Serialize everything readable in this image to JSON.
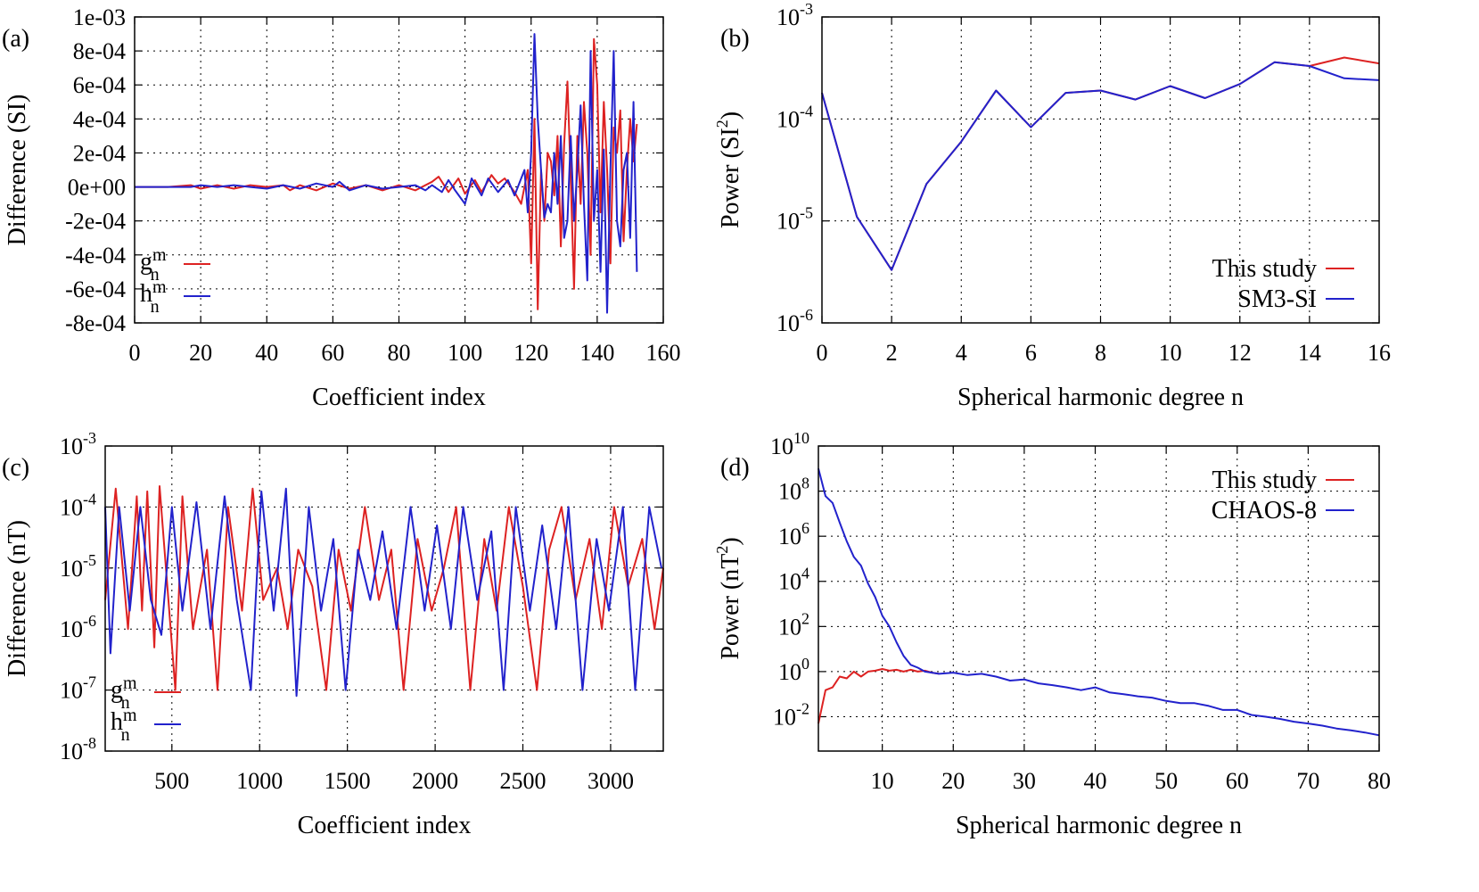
{
  "chart_data": [
    {
      "panel": "(a)",
      "type": "line",
      "xlabel": "Coefficient index",
      "ylabel": "Difference (SI)",
      "xlim": [
        0,
        160
      ],
      "ylim": [
        -0.0008,
        0.001
      ],
      "xticks": [
        "0",
        "20",
        "40",
        "60",
        "80",
        "100",
        "120",
        "140",
        "160"
      ],
      "yticks": [
        "-8e-04",
        "-6e-04",
        "-4e-04",
        "-2e-04",
        "0e+00",
        "2e-04",
        "4e-04",
        "6e-04",
        "8e-04",
        "1e-03"
      ],
      "grid": true,
      "legend": "bottom-left",
      "series": [
        {
          "name": "g",
          "sub": "n",
          "sup": "m",
          "color": "#dd2222",
          "x": [
            0,
            10,
            17,
            20,
            25,
            30,
            35,
            40,
            45,
            47,
            50,
            55,
            60,
            65,
            70,
            75,
            80,
            85,
            90,
            92,
            95,
            98,
            100,
            103,
            105,
            108,
            110,
            112,
            115,
            117,
            119,
            120,
            121,
            122,
            123,
            124,
            125,
            126,
            127,
            128,
            129,
            130,
            131,
            132,
            133,
            134,
            135,
            136,
            137,
            138,
            139,
            140,
            141,
            142,
            143,
            144,
            145,
            146,
            147,
            148,
            149,
            150,
            151,
            152
          ],
          "y": [
            0,
            0,
            1e-05,
            -1e-05,
            1e-05,
            -1e-05,
            1e-05,
            0,
            1e-05,
            -2e-05,
            1e-05,
            -2e-05,
            2e-05,
            -1e-05,
            1e-05,
            -2e-05,
            1e-05,
            -2e-05,
            3e-05,
            6e-05,
            -3e-05,
            5e-05,
            -4e-05,
            4e-05,
            -3e-05,
            7e-05,
            2e-05,
            5e-05,
            -3e-05,
            -0.0001,
            0.0001,
            -0.00045,
            0.0004,
            -0.00072,
            0.0001,
            -0.0002,
            0.0002,
            0.00015,
            -5e-05,
            0.0003,
            -0.00035,
            0.00025,
            0.00062,
            5e-05,
            -0.0006,
            0.0003,
            -0.0001,
            0.0005,
            0.0002,
            -0.0004,
            0.00087,
            0.0006,
            -0.00015,
            0.0005,
            0.0001,
            -0.00045,
            0.00035,
            0.0002,
            0.00045,
            -0.00032,
            0.0001,
            0.0004,
            0.00015,
            0.00037
          ]
        },
        {
          "name": "h",
          "sub": "n",
          "sup": "m",
          "color": "#2222cc",
          "x": [
            0,
            10,
            17,
            20,
            25,
            30,
            35,
            40,
            45,
            50,
            55,
            60,
            62,
            65,
            70,
            75,
            80,
            85,
            88,
            90,
            93,
            95,
            97,
            100,
            102,
            105,
            107,
            110,
            113,
            115,
            118,
            119,
            120,
            121,
            122,
            123,
            124,
            125,
            126,
            127,
            128,
            129,
            130,
            131,
            132,
            133,
            134,
            135,
            136,
            137,
            138,
            139,
            140,
            141,
            142,
            143,
            144,
            145,
            146,
            147,
            148,
            149,
            150,
            151,
            152
          ],
          "y": [
            0,
            0,
            0,
            1e-05,
            0,
            1e-05,
            0,
            -1e-05,
            1e-05,
            -1e-05,
            2e-05,
            0,
            3e-05,
            -2e-05,
            1e-05,
            -1e-05,
            0,
            1e-05,
            -2e-05,
            1e-05,
            -3e-05,
            4e-05,
            -2e-05,
            -0.0001,
            5e-05,
            -5e-05,
            5e-05,
            -3e-05,
            4e-05,
            -5e-05,
            0.0001,
            -0.00015,
            0.0002,
            0.0009,
            0.0004,
            0.0001,
            -0.00018,
            -0.0001,
            -0.00015,
            0.0002,
            -0.0001,
            0.0003,
            -0.0003,
            -0.0002,
            0.0003,
            -0.0002,
            0.0001,
            0.00048,
            -0.0001,
            -0.00055,
            0.0008,
            -0.0002,
            0.0001,
            -0.0005,
            0.00022,
            -0.00074,
            0.0001,
            0.0008,
            -0.0002,
            -0.00035,
            0.0001,
            0.0002,
            -0.0003,
            0.0005,
            -0.0005
          ]
        }
      ]
    },
    {
      "panel": "(b)",
      "type": "line",
      "xlabel": "Spherical harmonic degree n",
      "ylabel": "Power (SI",
      "ylabel_sup": "2",
      "ylabel_end": ")",
      "yscale": "log",
      "xlim": [
        0,
        16
      ],
      "ylim": [
        1e-06,
        0.001
      ],
      "xticks": [
        "0",
        "2",
        "4",
        "6",
        "8",
        "10",
        "12",
        "14",
        "16"
      ],
      "yticks": [
        {
          "base": "10",
          "exp": "-6"
        },
        {
          "base": "10",
          "exp": "-5"
        },
        {
          "base": "10",
          "exp": "-4"
        },
        {
          "base": "10",
          "exp": "-3"
        }
      ],
      "grid": true,
      "legend": "bottom-right",
      "series": [
        {
          "name": "This study",
          "color": "#dd2222",
          "x": [
            0,
            1,
            2,
            3,
            4,
            5,
            6,
            7,
            8,
            9,
            10,
            11,
            12,
            13,
            14,
            15,
            16
          ],
          "y": [
            0.00018,
            1.1e-05,
            3.3e-06,
            2.3e-05,
            6e-05,
            0.00019,
            8.3e-05,
            0.00018,
            0.00019,
            0.000155,
            0.00021,
            0.00016,
            0.00022,
            0.00036,
            0.00033,
            0.0004,
            0.00035
          ]
        },
        {
          "name": "SM3-SI",
          "color": "#2222cc",
          "x": [
            0,
            1,
            2,
            3,
            4,
            5,
            6,
            7,
            8,
            9,
            10,
            11,
            12,
            13,
            14,
            15,
            16
          ],
          "y": [
            0.00018,
            1.1e-05,
            3.3e-06,
            2.3e-05,
            6e-05,
            0.00019,
            8.3e-05,
            0.00018,
            0.00019,
            0.000155,
            0.00021,
            0.00016,
            0.00022,
            0.00036,
            0.00033,
            0.00025,
            0.00024
          ]
        }
      ]
    },
    {
      "panel": "(c)",
      "type": "line",
      "xlabel": "Coefficient index",
      "ylabel": "Difference (nT)",
      "yscale": "log",
      "xlim": [
        120,
        3300
      ],
      "ylim": [
        1e-08,
        0.001
      ],
      "xticks": [
        "500",
        "1000",
        "1500",
        "2000",
        "2500",
        "3000"
      ],
      "yticks": [
        {
          "base": "10",
          "exp": "-8"
        },
        {
          "base": "10",
          "exp": "-7"
        },
        {
          "base": "10",
          "exp": "-6"
        },
        {
          "base": "10",
          "exp": "-5"
        },
        {
          "base": "10",
          "exp": "-4"
        },
        {
          "base": "10",
          "exp": "-3"
        }
      ],
      "grid": true,
      "legend": "bottom-left",
      "series": [
        {
          "name": "g",
          "sub": "n",
          "sup": "m",
          "color": "#dd2222",
          "x": [
            120,
            180,
            250,
            300,
            330,
            360,
            400,
            430,
            480,
            520,
            560,
            620,
            700,
            760,
            820,
            900,
            960,
            1020,
            1100,
            1160,
            1220,
            1300,
            1380,
            1450,
            1520,
            1600,
            1680,
            1750,
            1820,
            1900,
            1980,
            2050,
            2120,
            2200,
            2280,
            2350,
            2420,
            2500,
            2580,
            2650,
            2720,
            2800,
            2880,
            2950,
            3020,
            3100,
            3180,
            3250,
            3300
          ],
          "y": [
            3e-06,
            0.0002,
            1e-06,
            0.00015,
            2e-06,
            0.00018,
            5e-07,
            0.00022,
            3e-06,
            1e-07,
            0.00015,
            1e-06,
            2e-05,
            1e-07,
            0.0001,
            2e-06,
            0.0002,
            3e-06,
            1e-05,
            1e-06,
            2e-05,
            5e-06,
            1e-07,
            2e-05,
            2e-06,
            0.0001,
            3e-06,
            2e-05,
            1e-07,
            3e-05,
            2e-06,
            1e-05,
            0.0001,
            1e-07,
            3e-05,
            2e-06,
            0.0001,
            5e-06,
            1e-07,
            2e-05,
            0.0001,
            3e-06,
            3e-05,
            1e-06,
            0.0001,
            5e-06,
            3e-05,
            1e-06,
            1e-05
          ]
        },
        {
          "name": "h",
          "sub": "n",
          "sup": "m",
          "color": "#2222cc",
          "x": [
            120,
            150,
            200,
            260,
            320,
            380,
            440,
            500,
            560,
            640,
            720,
            800,
            870,
            950,
            1010,
            1080,
            1150,
            1210,
            1280,
            1350,
            1420,
            1490,
            1560,
            1630,
            1700,
            1780,
            1860,
            1940,
            2010,
            2090,
            2160,
            2240,
            2320,
            2390,
            2460,
            2540,
            2610,
            2690,
            2760,
            2840,
            2920,
            2990,
            3070,
            3140,
            3220,
            3290
          ],
          "y": [
            0.0001,
            4e-07,
            0.0001,
            2e-06,
            0.0001,
            3e-06,
            8e-07,
            0.0001,
            2e-06,
            0.00012,
            1e-06,
            0.00015,
            3e-06,
            1e-07,
            0.00018,
            2e-06,
            0.0002,
            8e-08,
            0.0001,
            2e-06,
            3e-05,
            1e-07,
            2e-05,
            3e-06,
            4e-05,
            1e-06,
            0.0001,
            2e-06,
            5e-05,
            1e-06,
            0.0001,
            3e-06,
            4e-05,
            1e-07,
            0.0001,
            2e-06,
            5e-05,
            1e-06,
            0.0001,
            1e-07,
            3e-05,
            2e-06,
            0.0001,
            1e-07,
            0.0001,
            1e-05
          ]
        }
      ]
    },
    {
      "panel": "(d)",
      "type": "line",
      "xlabel": "Spherical harmonic degree n",
      "ylabel": "Power (nT",
      "ylabel_sup": "2",
      "ylabel_end": ")",
      "yscale": "log",
      "xlim": [
        1,
        80
      ],
      "ylim": [
        0.0003,
        10000000000.0
      ],
      "xticks": [
        "10",
        "20",
        "30",
        "40",
        "50",
        "60",
        "70",
        "80"
      ],
      "yticks": [
        {
          "base": "10",
          "exp": "-2"
        },
        {
          "base": "10",
          "exp": "0"
        },
        {
          "base": "10",
          "exp": "2"
        },
        {
          "base": "10",
          "exp": "4"
        },
        {
          "base": "10",
          "exp": "6"
        },
        {
          "base": "10",
          "exp": "8"
        },
        {
          "base": "10",
          "exp": "10"
        }
      ],
      "grid": true,
      "legend": "top-right",
      "series": [
        {
          "name": "This study",
          "color": "#dd2222",
          "x": [
            1,
            2,
            3,
            4,
            5,
            6,
            7,
            8,
            9,
            10,
            11,
            12,
            13,
            14,
            15,
            16,
            17,
            18
          ],
          "y": [
            0.005,
            0.15,
            0.2,
            0.6,
            0.5,
            1.0,
            0.6,
            1.0,
            1.1,
            1.3,
            1.1,
            1.2,
            1.0,
            1.2,
            1.0,
            1.1,
            0.9,
            0.8
          ]
        },
        {
          "name": "CHAOS-8",
          "color": "#2222cc",
          "x": [
            1,
            2,
            3,
            4,
            5,
            6,
            7,
            8,
            9,
            10,
            11,
            12,
            13,
            14,
            15,
            16,
            17,
            18,
            20,
            22,
            24,
            26,
            28,
            30,
            32,
            34,
            36,
            38,
            40,
            42,
            44,
            46,
            48,
            50,
            52,
            54,
            56,
            58,
            60,
            62,
            64,
            66,
            68,
            70,
            72,
            74,
            76,
            78,
            80
          ],
          "y": [
            1000000000.0,
            60000000.0,
            30000000.0,
            4000000.0,
            600000.0,
            120000.0,
            50000.0,
            8000.0,
            2000.0,
            300,
            100,
            20,
            5,
            2,
            1.5,
            1.0,
            0.9,
            0.8,
            0.9,
            0.7,
            0.8,
            0.6,
            0.4,
            0.45,
            0.3,
            0.25,
            0.2,
            0.15,
            0.2,
            0.12,
            0.1,
            0.08,
            0.07,
            0.05,
            0.04,
            0.04,
            0.03,
            0.02,
            0.02,
            0.012,
            0.01,
            0.008,
            0.006,
            0.005,
            0.004,
            0.003,
            0.0025,
            0.002,
            0.0015
          ]
        }
      ]
    }
  ]
}
